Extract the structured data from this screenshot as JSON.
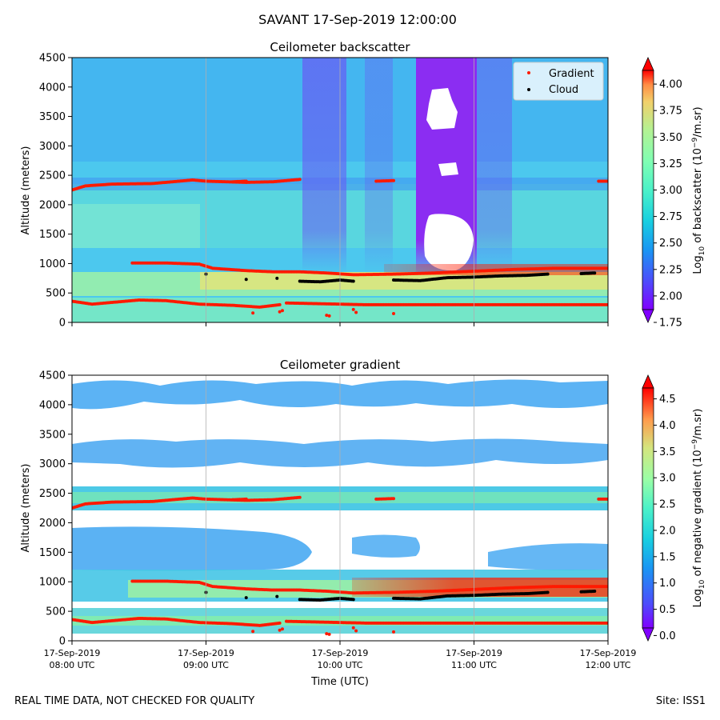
{
  "figure": {
    "title": "SAVANT 17-Sep-2019 12:00:00",
    "footer_left": "REAL TIME DATA, NOT CHECKED FOR QUALITY",
    "footer_right": "Site: ISS1"
  },
  "colors": {
    "background_field": "#74e6c8",
    "blue_band": "#4fb6ef",
    "deep_blue": "#5a6df5",
    "purple": "#8b2df2",
    "layer_red": "#ff1a00",
    "cloud_black": "#000000",
    "bright_band": "#b9f09a"
  },
  "chart_data": [
    {
      "type": "heatmap",
      "title": "Ceilometer backscatter",
      "xlabel": "",
      "ylabel": "Altitude (meters)",
      "ylim": [
        0,
        4500
      ],
      "xlim_hours_utc": [
        8,
        12
      ],
      "yticks": [
        "0",
        "500",
        "1000",
        "1500",
        "2000",
        "2500",
        "3000",
        "3500",
        "4000",
        "4500"
      ],
      "xticks": [],
      "legend": {
        "position": "top-right",
        "entries": [
          "Gradient",
          "Cloud"
        ]
      },
      "colorbar": {
        "label": "Log10 of backscatter (10^-9/m.sr)",
        "label_main": "Log",
        "label_sub": "10",
        "label_rest": " of backscatter (10",
        "label_sup": "−9",
        "label_end": "/m.sr)",
        "ticks": [
          "1.75",
          "2.00",
          "2.25",
          "2.50",
          "2.75",
          "3.00",
          "3.25",
          "3.50",
          "3.75",
          "4.00"
        ],
        "range": [
          1.75,
          4.25
        ]
      },
      "series": [
        {
          "name": "Gradient",
          "color": "#ff1a00",
          "layers": [
            {
              "x": [
                8.0,
                8.1,
                8.3,
                8.6,
                8.9,
                9.0,
                9.3,
                9.5,
                9.7
              ],
              "y": [
                2250,
                2320,
                2350,
                2360,
                2420,
                2400,
                2380,
                2390,
                2430
              ]
            },
            {
              "x": [
                9.2,
                9.3
              ],
              "y": [
                2390,
                2400
              ]
            },
            {
              "x": [
                10.27,
                10.4
              ],
              "y": [
                2400,
                2410
              ]
            },
            {
              "x": [
                11.93,
                12.0
              ],
              "y": [
                2400,
                2400
              ]
            },
            {
              "x": [
                8.45,
                8.7,
                8.95,
                9.05,
                9.3,
                9.5,
                9.7,
                9.9,
                10.1,
                10.4,
                10.7,
                11.0,
                11.3,
                11.6,
                12.0
              ],
              "y": [
                1010,
                1010,
                990,
                920,
                880,
                860,
                860,
                840,
                810,
                820,
                840,
                870,
                900,
                920,
                920
              ]
            },
            {
              "x": [
                8.0,
                8.15,
                8.3,
                8.5,
                8.7,
                8.95,
                9.2,
                9.4,
                9.55
              ],
              "y": [
                360,
                310,
                340,
                380,
                370,
                310,
                290,
                260,
                300
              ]
            },
            {
              "x": [
                9.6,
                9.8,
                10.0,
                10.2,
                10.5,
                10.8,
                11.2,
                11.6,
                12.0
              ],
              "y": [
                330,
                320,
                310,
                300,
                300,
                300,
                300,
                300,
                300
              ]
            }
          ],
          "points": [
            {
              "x": [
                9.35,
                9.55,
                9.57,
                9.9,
                9.92,
                10.1,
                10.12,
                10.4
              ],
              "y": [
                160,
                180,
                200,
                120,
                110,
                220,
                170,
                150
              ]
            }
          ]
        },
        {
          "name": "Cloud",
          "color": "#000000",
          "layers": [
            {
              "x": [
                9.7,
                9.85,
                10.0,
                10.1
              ],
              "y": [
                700,
                690,
                720,
                700
              ]
            },
            {
              "x": [
                10.4,
                10.6,
                10.8,
                11.0,
                11.2,
                11.4,
                11.55
              ],
              "y": [
                720,
                710,
                760,
                770,
                790,
                800,
                820
              ]
            },
            {
              "x": [
                11.8,
                11.9
              ],
              "y": [
                830,
                840
              ]
            }
          ],
          "points": [
            {
              "x": [
                9.0,
                9.3,
                9.53
              ],
              "y": [
                820,
                730,
                750
              ]
            }
          ]
        }
      ]
    },
    {
      "type": "heatmap",
      "title": "Ceilometer gradient",
      "xlabel": "Time (UTC)",
      "ylabel": "Altitude (meters)",
      "ylim": [
        0,
        4500
      ],
      "xlim_hours_utc": [
        8,
        12
      ],
      "yticks": [
        "0",
        "500",
        "1000",
        "1500",
        "2000",
        "2500",
        "3000",
        "3500",
        "4000",
        "4500"
      ],
      "xticks": [
        {
          "date": "17-Sep-2019",
          "time": "08:00 UTC"
        },
        {
          "date": "17-Sep-2019",
          "time": "09:00 UTC"
        },
        {
          "date": "17-Sep-2019",
          "time": "10:00 UTC"
        },
        {
          "date": "17-Sep-2019",
          "time": "11:00 UTC"
        },
        {
          "date": "17-Sep-2019",
          "time": "12:00 UTC"
        }
      ],
      "colorbar": {
        "label": "Log10 of negative gradient (10^-9/m.sr)",
        "label_main": "Log",
        "label_sub": "10",
        "label_rest": " of negative gradient (10",
        "label_sup": "−9",
        "label_end": "/m.sr)",
        "ticks": [
          "0.0",
          "0.5",
          "1.0",
          "1.5",
          "2.0",
          "2.5",
          "3.0",
          "3.5",
          "4.0",
          "4.5"
        ],
        "range": [
          -0.1,
          4.95
        ]
      }
    }
  ]
}
